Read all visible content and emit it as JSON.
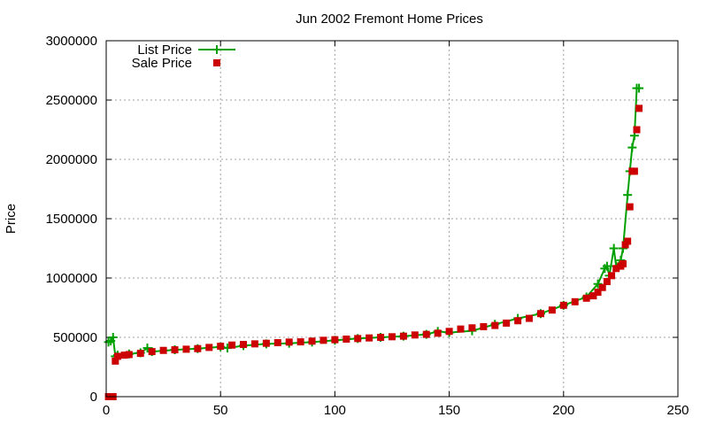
{
  "chart_data": {
    "type": "line",
    "title": "Jun 2002 Fremont Home Prices",
    "xlabel": "",
    "ylabel": "Price",
    "xlim": [
      0,
      250
    ],
    "ylim": [
      0,
      3000000
    ],
    "xticks": [
      0,
      50,
      100,
      150,
      200,
      250
    ],
    "yticks": [
      0,
      500000,
      1000000,
      1500000,
      2000000,
      2500000,
      3000000
    ],
    "xtick_labels": [
      "0",
      "50",
      "100",
      "150",
      "200",
      "250"
    ],
    "ytick_labels": [
      "0",
      "500000",
      "1000000",
      "1500000",
      "2000000",
      "2500000",
      "3000000"
    ],
    "grid": true,
    "legend_position": "top-left",
    "series": [
      {
        "name": "List Price",
        "style": "lines+crosses",
        "color": "#00a000",
        "x": [
          1,
          2,
          3,
          4,
          5,
          10,
          15,
          18,
          20,
          30,
          40,
          50,
          53,
          60,
          70,
          80,
          90,
          100,
          110,
          120,
          130,
          140,
          145,
          150,
          160,
          170,
          180,
          190,
          200,
          210,
          215,
          218,
          219,
          220,
          222,
          223,
          225,
          226,
          228,
          229,
          230,
          231,
          232,
          233
        ],
        "values": [
          460000,
          470000,
          500000,
          340000,
          350000,
          360000,
          370000,
          410000,
          380000,
          395000,
          405000,
          420000,
          410000,
          430000,
          445000,
          450000,
          460000,
          475000,
          490000,
          500000,
          510000,
          525000,
          550000,
          540000,
          555000,
          610000,
          660000,
          700000,
          770000,
          840000,
          950000,
          1080000,
          1100000,
          1020000,
          1250000,
          1100000,
          1150000,
          1250000,
          1700000,
          1900000,
          2100000,
          2200000,
          2600000,
          2600000
        ]
      },
      {
        "name": "Sale Price",
        "style": "squares",
        "color": "#cc0000",
        "x": [
          1,
          2,
          3,
          4,
          5,
          8,
          10,
          15,
          20,
          25,
          30,
          35,
          40,
          45,
          50,
          55,
          60,
          65,
          70,
          75,
          80,
          85,
          90,
          95,
          100,
          105,
          110,
          115,
          120,
          125,
          130,
          135,
          140,
          145,
          150,
          155,
          160,
          165,
          170,
          175,
          180,
          185,
          190,
          195,
          200,
          205,
          210,
          213,
          215,
          217,
          219,
          221,
          223,
          225,
          226,
          227,
          228,
          229,
          230,
          231,
          232,
          233
        ],
        "values": [
          0,
          0,
          0,
          300000,
          340000,
          350000,
          355000,
          365000,
          380000,
          390000,
          395000,
          400000,
          405000,
          415000,
          425000,
          435000,
          440000,
          445000,
          450000,
          455000,
          460000,
          462000,
          468000,
          475000,
          480000,
          485000,
          490000,
          495000,
          500000,
          505000,
          510000,
          520000,
          525000,
          535000,
          550000,
          570000,
          580000,
          590000,
          600000,
          620000,
          640000,
          660000,
          700000,
          730000,
          770000,
          800000,
          830000,
          850000,
          880000,
          920000,
          970000,
          1020000,
          1080000,
          1100000,
          1120000,
          1280000,
          1310000,
          1600000,
          1900000,
          1900000,
          2250000,
          2430000
        ]
      }
    ]
  }
}
